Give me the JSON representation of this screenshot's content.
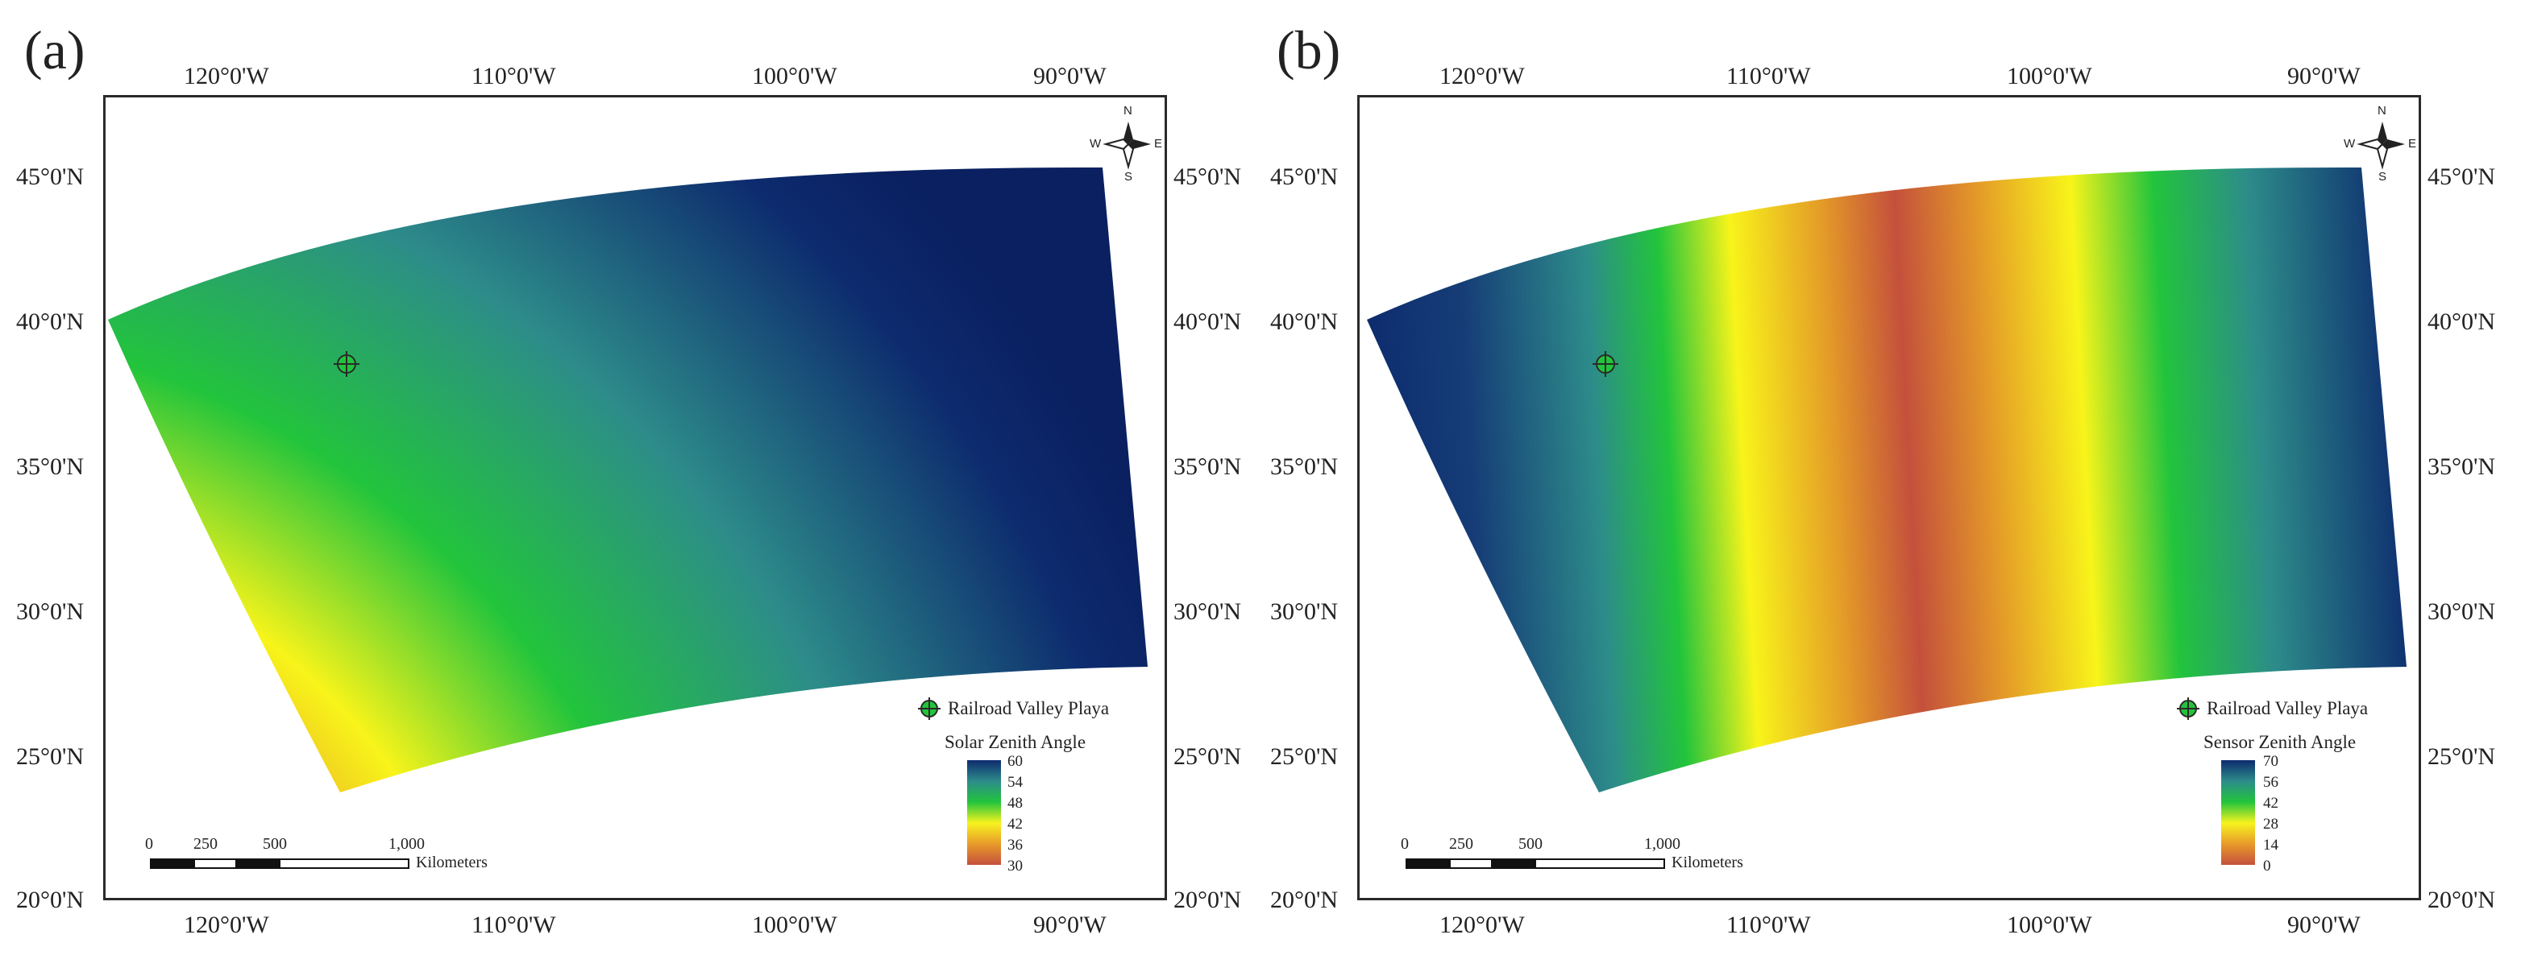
{
  "panels": [
    {
      "id": "a",
      "label": "(a)",
      "lon_labels": [
        "120°0'W",
        "110°0'W",
        "100°0'W",
        "90°0'W"
      ],
      "lat_labels": [
        "45°0'N",
        "40°0'N",
        "35°0'N",
        "30°0'N",
        "25°0'N",
        "20°0'N"
      ],
      "compass": {
        "n": "N",
        "s": "S",
        "e": "E",
        "w": "W"
      },
      "site_label": "Railroad Valley Playa",
      "legend_title": "Solar Zenith Angle",
      "legend_values": [
        "60",
        "54",
        "48",
        "42",
        "36",
        "30"
      ],
      "legend_colors": [
        "#0d2b6e",
        "#2d8c8a",
        "#22c43c",
        "#f6f31e",
        "#e89a2a",
        "#c4503c"
      ],
      "scale_numbers": [
        "0",
        "250",
        "500",
        "1,000"
      ],
      "scale_unit": "Kilometers"
    },
    {
      "id": "b",
      "label": "(b)",
      "lon_labels": [
        "120°0'W",
        "110°0'W",
        "100°0'W",
        "90°0'W"
      ],
      "lat_labels": [
        "45°0'N",
        "40°0'N",
        "35°0'N",
        "30°0'N",
        "25°0'N",
        "20°0'N"
      ],
      "compass": {
        "n": "N",
        "s": "S",
        "e": "E",
        "w": "W"
      },
      "site_label": "Railroad Valley Playa",
      "legend_title": "Sensor Zenith Angle",
      "legend_values": [
        "70",
        "56",
        "42",
        "28",
        "14",
        "0"
      ],
      "legend_colors": [
        "#0d2b6e",
        "#2d8c8a",
        "#22c43c",
        "#f6f31e",
        "#e89a2a",
        "#c4503c"
      ],
      "scale_numbers": [
        "0",
        "250",
        "500",
        "1,000"
      ],
      "scale_unit": "Kilometers"
    }
  ]
}
